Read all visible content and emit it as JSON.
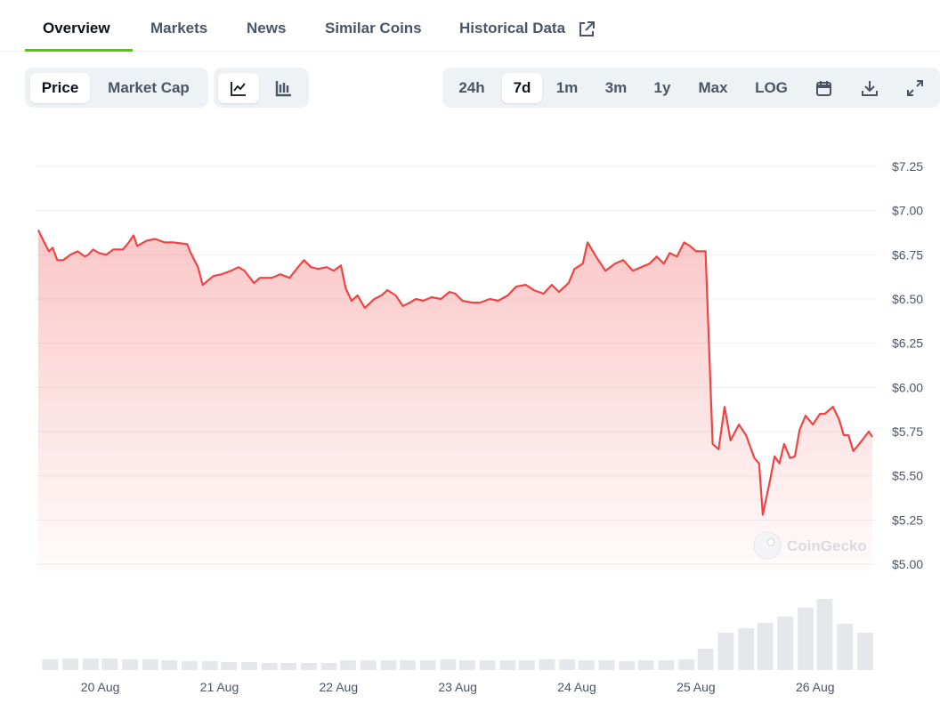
{
  "tabs": [
    "Overview",
    "Markets",
    "News",
    "Similar Coins",
    "Historical Data"
  ],
  "chart_toggle": [
    "Price",
    "Market Cap"
  ],
  "ranges": [
    "24h",
    "7d",
    "1m",
    "3m",
    "1y",
    "Max",
    "LOG"
  ],
  "watermark": "CoinGecko",
  "chart_data": {
    "type": "line",
    "color": "#ef4444",
    "x": [
      19.48,
      19.53,
      19.57,
      19.6,
      19.64,
      19.69,
      19.75,
      19.81,
      19.87,
      19.9,
      19.94,
      19.99,
      20.05,
      20.11,
      20.19,
      20.24,
      20.28,
      20.31,
      20.39,
      20.46,
      20.54,
      20.61,
      20.73,
      20.76,
      20.82,
      20.86,
      20.95,
      21.02,
      21.1,
      21.16,
      21.21,
      21.29,
      21.34,
      21.44,
      21.51,
      21.59,
      21.66,
      21.71,
      21.77,
      21.83,
      21.9,
      21.96,
      22.02,
      22.06,
      22.11,
      22.16,
      22.22,
      22.3,
      22.36,
      22.41,
      22.48,
      22.54,
      22.6,
      22.65,
      22.71,
      22.78,
      22.86,
      22.93,
      22.98,
      23.04,
      23.12,
      23.19,
      23.27,
      23.34,
      23.42,
      23.49,
      23.57,
      23.64,
      23.72,
      23.79,
      23.85,
      23.93,
      23.98,
      24.05,
      24.09,
      24.17,
      24.24,
      24.32,
      24.39,
      24.47,
      24.54,
      24.61,
      24.67,
      24.73,
      24.78,
      24.84,
      24.9,
      24.95,
      25.0,
      25.08,
      25.14,
      25.19,
      25.24,
      25.29,
      25.36,
      25.42,
      25.49,
      25.53,
      25.56,
      25.62,
      25.66,
      25.7,
      25.74,
      25.79,
      25.83,
      25.87,
      25.92,
      25.98,
      26.04,
      26.08,
      26.15,
      26.2,
      26.24,
      26.28,
      26.32,
      26.37,
      26.45,
      26.48
    ],
    "values": [
      6.89,
      6.82,
      6.77,
      6.79,
      6.72,
      6.72,
      6.75,
      6.77,
      6.74,
      6.75,
      6.78,
      6.76,
      6.75,
      6.78,
      6.78,
      6.82,
      6.86,
      6.8,
      6.83,
      6.84,
      6.82,
      6.82,
      6.81,
      6.76,
      6.68,
      6.58,
      6.63,
      6.64,
      6.66,
      6.68,
      6.66,
      6.59,
      6.62,
      6.62,
      6.64,
      6.62,
      6.68,
      6.72,
      6.68,
      6.67,
      6.68,
      6.66,
      6.69,
      6.56,
      6.49,
      6.52,
      6.45,
      6.5,
      6.52,
      6.55,
      6.52,
      6.46,
      6.48,
      6.5,
      6.49,
      6.51,
      6.5,
      6.54,
      6.53,
      6.49,
      6.48,
      6.48,
      6.5,
      6.49,
      6.52,
      6.57,
      6.58,
      6.55,
      6.53,
      6.58,
      6.54,
      6.59,
      6.67,
      6.7,
      6.82,
      6.73,
      6.66,
      6.7,
      6.72,
      6.66,
      6.68,
      6.7,
      6.74,
      6.7,
      6.76,
      6.74,
      6.82,
      6.8,
      6.77,
      6.77,
      5.68,
      5.65,
      5.89,
      5.7,
      5.79,
      5.73,
      5.6,
      5.57,
      5.28,
      5.47,
      5.61,
      5.57,
      5.68,
      5.6,
      5.61,
      5.76,
      5.84,
      5.79,
      5.85,
      5.85,
      5.89,
      5.82,
      5.73,
      5.73,
      5.64,
      5.68,
      5.75,
      5.72
    ],
    "volume": {
      "color": "#e5e7eb",
      "x": [
        19.58,
        19.75,
        19.92,
        20.08,
        20.25,
        20.42,
        20.58,
        20.75,
        20.92,
        21.08,
        21.25,
        21.42,
        21.58,
        21.75,
        21.92,
        22.08,
        22.25,
        22.42,
        22.58,
        22.75,
        22.92,
        23.08,
        23.25,
        23.42,
        23.58,
        23.75,
        23.92,
        24.08,
        24.25,
        24.42,
        24.58,
        24.75,
        24.92,
        25.08,
        25.25,
        25.42,
        25.58,
        25.75,
        25.92,
        26.08,
        26.25,
        26.42
      ],
      "values": [
        12,
        13,
        13,
        13,
        12,
        12,
        11,
        10,
        10,
        9,
        9,
        8,
        8,
        8,
        8,
        11,
        11,
        11,
        11,
        11,
        12,
        11,
        11,
        11,
        11,
        12,
        12,
        11,
        11,
        10,
        11,
        11,
        12,
        24,
        42,
        47,
        53,
        60,
        70,
        80,
        52,
        42
      ]
    },
    "xlim": [
      19.48,
      26.48
    ],
    "xticks": [
      {
        "value": 20,
        "label": "20 Aug"
      },
      {
        "value": 21,
        "label": "21 Aug"
      },
      {
        "value": 22,
        "label": "22 Aug"
      },
      {
        "value": 23,
        "label": "23 Aug"
      },
      {
        "value": 24,
        "label": "24 Aug"
      },
      {
        "value": 25,
        "label": "25 Aug"
      },
      {
        "value": 26,
        "label": "26 Aug"
      }
    ],
    "ylim": [
      5,
      7.25
    ],
    "yticks": [
      {
        "value": 5,
        "label": "$5.00"
      },
      {
        "value": 5.25,
        "label": "$5.25"
      },
      {
        "value": 5.5,
        "label": "$5.50"
      },
      {
        "value": 5.75,
        "label": "$5.75"
      },
      {
        "value": 6,
        "label": "$6.00"
      },
      {
        "value": 6.25,
        "label": "$6.25"
      },
      {
        "value": 6.5,
        "label": "$6.50"
      },
      {
        "value": 6.75,
        "label": "$6.75"
      },
      {
        "value": 7,
        "label": "$7.00"
      },
      {
        "value": 7.25,
        "label": "$7.25"
      }
    ],
    "grid": true
  }
}
